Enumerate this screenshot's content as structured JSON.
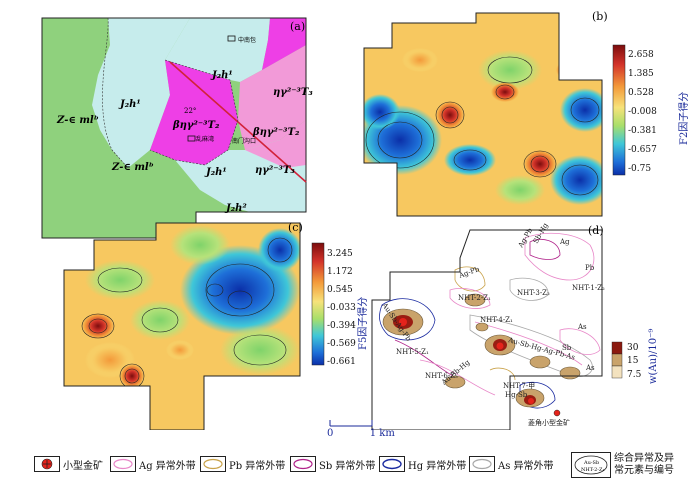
{
  "panels": {
    "a": {
      "label": "(a)",
      "units": [
        "J₂h¹",
        "J₂h¹",
        "J₂h¹",
        "J₂h²",
        "Z-∈ mlᵇ",
        "Z-∈ mlᵇ",
        "βηγ²⁻³T₂",
        "βηγ²⁻³T₂",
        "ηγ²⁻³T₃",
        "ηγ²⁻³T₃"
      ],
      "place_labels": [
        "中南包",
        "乱麻湾",
        "南门沟口"
      ],
      "dip": "22°"
    },
    "b": {
      "label": "(b)",
      "scale_title": "F2因子得分",
      "ticks": [
        "2.658",
        "1.385",
        "0.528",
        "-0.008",
        "-0.381",
        "-0.657",
        "-0.75"
      ]
    },
    "c": {
      "label": "(c)",
      "scale_title": "F5因子得分",
      "ticks": [
        "3.245",
        "1.172",
        "0.545",
        "-0.033",
        "-0.394",
        "-0.569",
        "-0.661"
      ]
    },
    "d": {
      "label": "(d)",
      "anomaly_labels": [
        "Ag-Pb",
        "Sb-Hg",
        "Ag",
        "Pb",
        "NHT-1-Z₂",
        "Ag-Pb",
        "NHT-2-Z₁",
        "NHT-3-Z₂",
        "As",
        "NHT-4-Z₁",
        "Au-Sb-Hg-Ag-Pb-As",
        "Au-Sb-Ag-Pb",
        "NHT-5-Z₁",
        "NHT-6-Z₃",
        "NHT-7-甲",
        "Hg-Sb",
        "Sb",
        "As",
        "Au-Sb-Hg",
        "菱角小型金矿"
      ],
      "scale_title": "w(Au)/10⁻⁹",
      "scale_ticks": [
        "30",
        "15",
        "7.5"
      ]
    }
  },
  "scale": {
    "zero": "0",
    "unit": "1 km"
  },
  "legend": [
    {
      "icon": "gold-mine",
      "label": "小型金矿"
    },
    {
      "icon": "ellipse",
      "color": "#e887c8",
      "label": "Ag 异常外带"
    },
    {
      "icon": "ellipse",
      "color": "#c9a24a",
      "label": "Pb 异常外带"
    },
    {
      "icon": "ellipse",
      "color": "#b0238a",
      "label": "Sb 异常外带"
    },
    {
      "icon": "ellipse",
      "color": "#1a2aa0",
      "label": "Hg 异常外带"
    },
    {
      "icon": "ellipse",
      "color": "#a8a8a8",
      "label": "As 异常外带"
    },
    {
      "icon": "composite",
      "inner": "Au-Sb",
      "inner2": "NHT-2-Z₁",
      "label": "综合异常及异常元素与编号"
    }
  ]
}
